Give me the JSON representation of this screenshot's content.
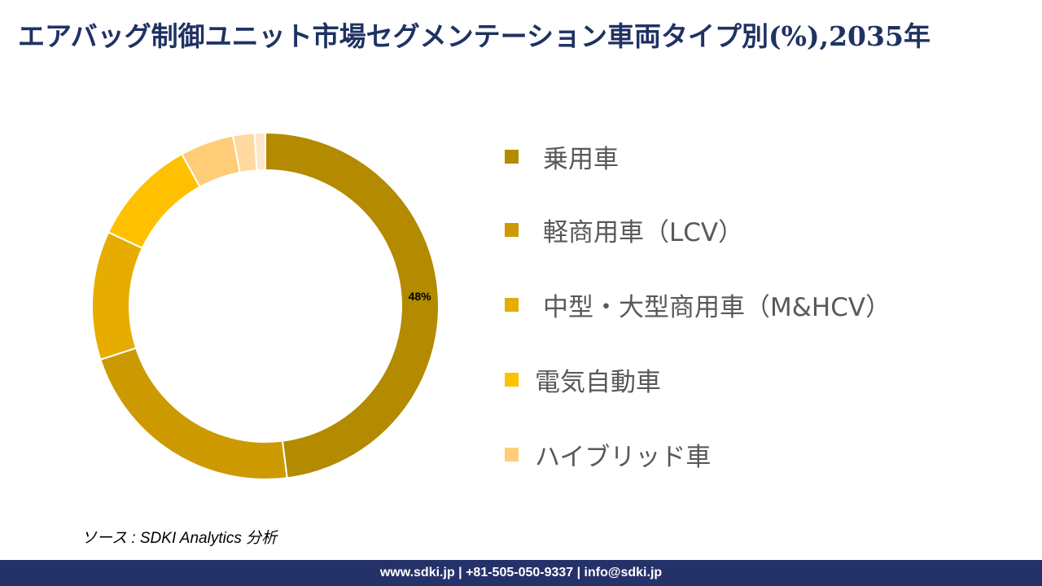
{
  "title": "エアバッグ制御ユニット市場セグメンテーション車両タイプ別(%),2035年",
  "chart_data": {
    "type": "pie",
    "variant": "donut",
    "title": "エアバッグ制御ユニット市場セグメンテーション車両タイプ別(%),2035年",
    "legend_position": "right",
    "slices": [
      {
        "name": "乗用車",
        "value": 48,
        "label": "48%",
        "color": "#B38A00"
      },
      {
        "name": "軽商用車（LCV）",
        "value": 22,
        "color": "#CC9A00"
      },
      {
        "name": "中型・大型商用車（M&HCV）",
        "value": 12,
        "color": "#E6AD00"
      },
      {
        "name": "電気自動車",
        "value": 10,
        "color": "#FFC000"
      },
      {
        "name": "ハイブリッド車",
        "value": 5,
        "color": "#FFCC77"
      },
      {
        "value": 2,
        "color": "#FFD9A0"
      },
      {
        "value": 1,
        "color": "#FFE6C8"
      }
    ]
  },
  "source": "ソース : SDKI Analytics 分析",
  "footer": "www.sdki.jp | +81-505-050-9337 | info@sdki.jp"
}
